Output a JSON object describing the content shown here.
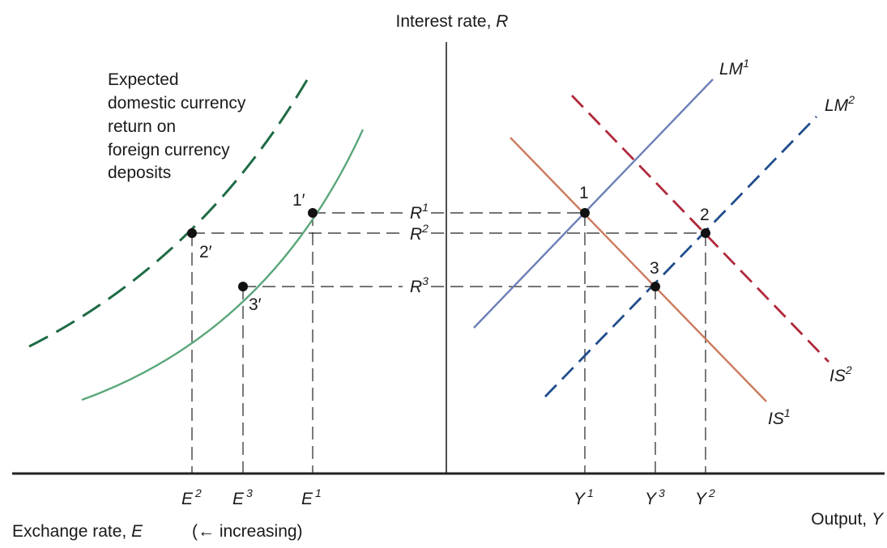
{
  "axes": {
    "y_label": "Interest rate, ",
    "y_var": "R",
    "x_right_label": "Output, ",
    "x_right_var": "Y",
    "x_left_label": "Exchange rate, ",
    "x_left_var": "E",
    "x_left_note": "(← increasing)"
  },
  "curve_label_lines": [
    "Expected",
    "domestic currency",
    "return on",
    "foreign currency",
    "deposits"
  ],
  "curves": {
    "lm1": {
      "name": "LM",
      "sup": "1",
      "color": "#6b7fb8"
    },
    "lm2": {
      "name": "LM",
      "sup": "2",
      "color": "#1f4d8c"
    },
    "is1": {
      "name": "IS",
      "sup": "1",
      "color": "#cc7a5c"
    },
    "is2": {
      "name": "IS",
      "sup": "2",
      "color": "#b0283a"
    },
    "fx_solid": {
      "color": "#5aa77a"
    },
    "fx_dashed": {
      "color": "#1e6b45"
    }
  },
  "points": {
    "p1": "1",
    "p2": "2",
    "p3": "3",
    "p1p": "1′",
    "p2p": "2′",
    "p3p": "3′"
  },
  "rate_labels": {
    "r1": {
      "name": "R",
      "sup": "1"
    },
    "r2": {
      "name": "R",
      "sup": "2"
    },
    "r3": {
      "name": "R",
      "sup": "3"
    }
  },
  "x_ticks_left": {
    "e2": {
      "name": "E",
      "sup": "2"
    },
    "e3": {
      "name": "E",
      "sup": "3"
    },
    "e1": {
      "name": "E",
      "sup": "1"
    }
  },
  "x_ticks_right": {
    "y1": {
      "name": "Y",
      "sup": "1"
    },
    "y3": {
      "name": "Y",
      "sup": "3"
    },
    "y2": {
      "name": "Y",
      "sup": "2"
    }
  }
}
